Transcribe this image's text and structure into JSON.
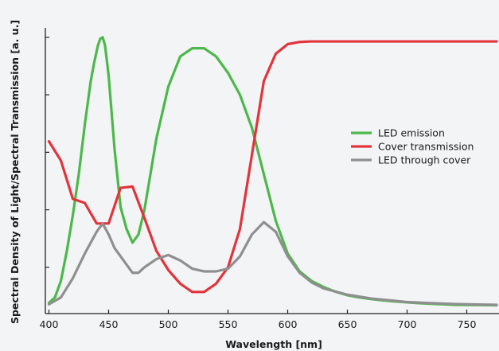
{
  "chart_data": {
    "type": "line",
    "title": "",
    "xlabel": "Wavelength [nm]",
    "ylabel": "Spectral Density of Light/Spectral Transmission [a. u.]",
    "xlim": [
      397,
      777
    ],
    "ylim": [
      0,
      100
    ],
    "x_ticks": [
      400,
      450,
      500,
      550,
      600,
      650,
      700,
      750
    ],
    "x_tick_labels": [
      "400",
      "450",
      "500",
      "550",
      "600",
      "650",
      "700",
      "750"
    ],
    "y_ticks_minor": [
      14,
      35,
      56,
      77,
      98
    ],
    "y_tick_labels_shown": false,
    "grid": false,
    "legend_position": "right-center",
    "series": [
      {
        "name": "LED emission",
        "color": "#4cb84a",
        "x": [
          400,
          405,
          410,
          415,
          420,
          425,
          430,
          435,
          438,
          441,
          443,
          445,
          447,
          450,
          455,
          460,
          465,
          470,
          475,
          480,
          490,
          500,
          510,
          520,
          530,
          540,
          550,
          560,
          570,
          580,
          590,
          600,
          610,
          620,
          630,
          640,
          650,
          660,
          670,
          680,
          690,
          700,
          710,
          720,
          730,
          740,
          750,
          760,
          775
        ],
        "values": [
          1,
          3,
          9,
          20,
          33,
          48,
          66,
          82,
          89,
          95,
          97.5,
          98,
          95,
          84,
          57,
          36,
          28,
          23,
          26,
          35,
          61,
          80,
          91,
          94,
          94,
          91,
          85,
          77,
          65,
          48,
          31,
          19,
          12.5,
          9,
          6.8,
          5.1,
          3.8,
          3.0,
          2.4,
          1.9,
          1.5,
          1.2,
          0.9,
          0.7,
          0.5,
          0.3,
          0.25,
          0.2,
          0.15
        ]
      },
      {
        "name": "Cover transmission",
        "color": "#e3333b",
        "x": [
          400,
          410,
          420,
          430,
          440,
          450,
          460,
          470,
          480,
          490,
          500,
          510,
          520,
          530,
          540,
          550,
          560,
          570,
          580,
          590,
          600,
          610,
          620,
          630,
          650,
          700,
          750,
          775
        ],
        "values": [
          60,
          53,
          39,
          37.5,
          30,
          30,
          43,
          43.5,
          32,
          20,
          13,
          8,
          5,
          5,
          8,
          14,
          28,
          55,
          82,
          92,
          95.5,
          96.3,
          96.5,
          96.5,
          96.5,
          96.5,
          96.5,
          96.5
        ]
      },
      {
        "name": "LED through cover",
        "color": "#8f8f8f",
        "x": [
          400,
          410,
          420,
          430,
          440,
          445,
          450,
          455,
          460,
          465,
          470,
          475,
          480,
          490,
          500,
          510,
          520,
          530,
          540,
          550,
          560,
          570,
          580,
          590,
          600,
          610,
          620,
          630,
          650,
          670,
          700,
          720,
          740,
          760,
          775
        ],
        "values": [
          0.5,
          3,
          10,
          19,
          27,
          30,
          26,
          21,
          18,
          15,
          12,
          12,
          14,
          17,
          18.5,
          16.5,
          13.5,
          12.5,
          12.5,
          13.5,
          18,
          26,
          30.5,
          27,
          18,
          12,
          8.5,
          6.3,
          4.0,
          2.6,
          1.3,
          0.9,
          0.6,
          0.4,
          0.3
        ]
      }
    ]
  }
}
